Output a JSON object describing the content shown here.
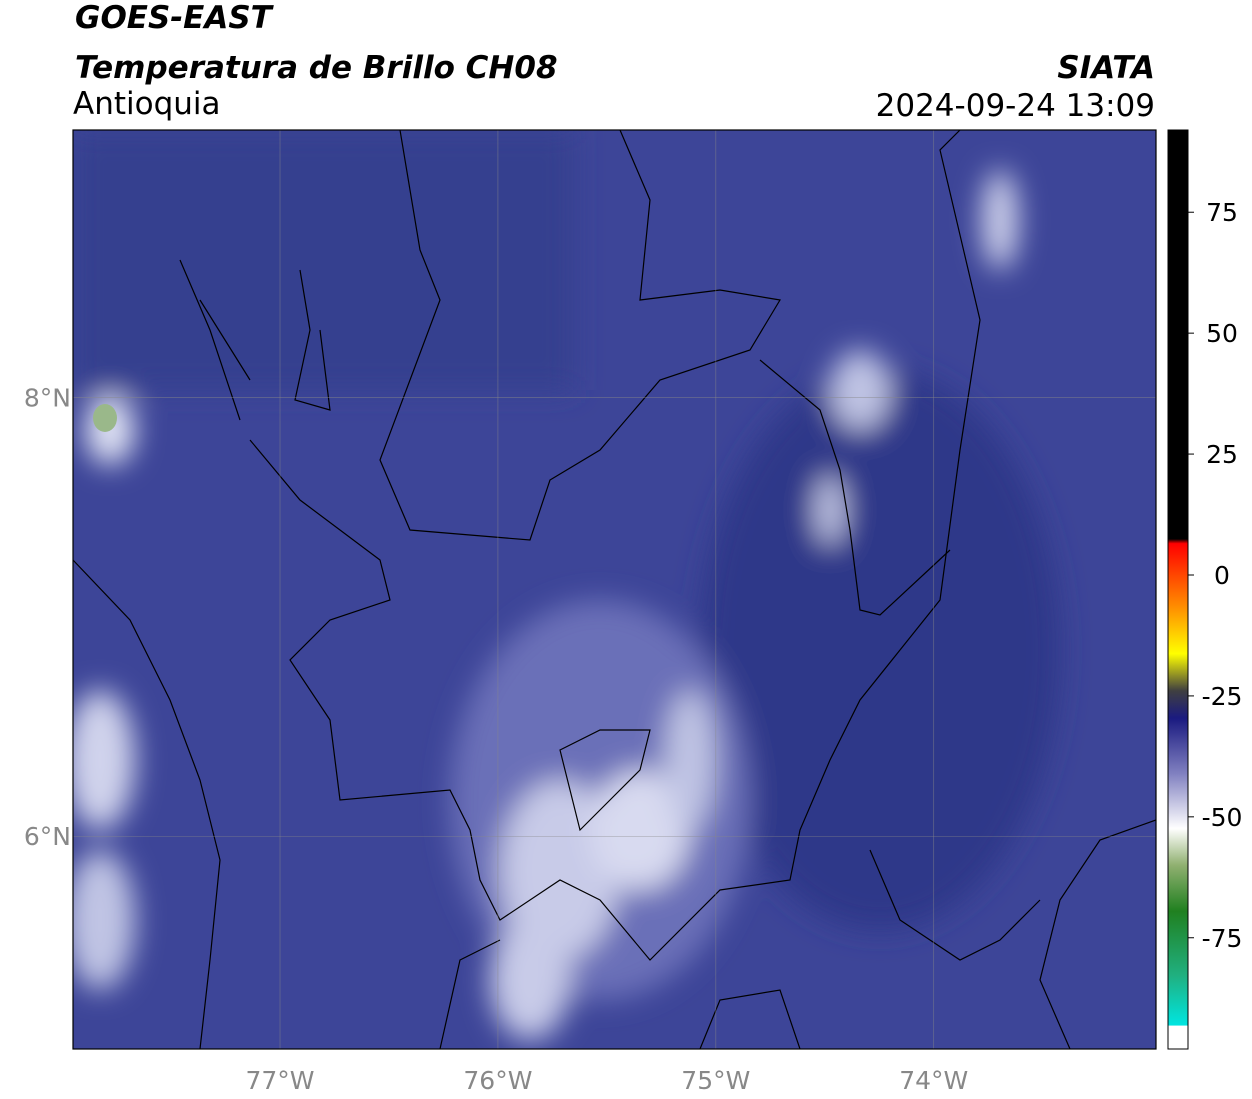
{
  "header": {
    "satellite": "GOES-EAST",
    "product": "Temperatura de Brillo CH08",
    "region": "Antioquia",
    "source": "SIATA",
    "datetime": "2024-09-24 13:09"
  },
  "map": {
    "xlim": [
      -77.95,
      -72.98
    ],
    "ylim": [
      5.03,
      9.22
    ],
    "xticks": [
      {
        "value": -77,
        "label": "77°W"
      },
      {
        "value": -76,
        "label": "76°W"
      },
      {
        "value": -75,
        "label": "75°W"
      },
      {
        "value": -74,
        "label": "74°W"
      }
    ],
    "yticks": [
      {
        "value": 8,
        "label": "8°N"
      },
      {
        "value": 6,
        "label": "6°N"
      }
    ],
    "grid": true
  },
  "colorbar": {
    "range": [
      -98,
      92
    ],
    "ticks": [
      75,
      50,
      25,
      0,
      -25,
      -50,
      -75
    ]
  }
}
